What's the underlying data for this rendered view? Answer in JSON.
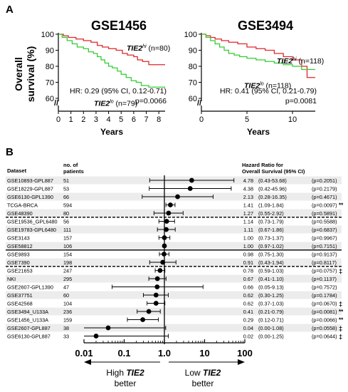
{
  "panel_a": {
    "label": "A",
    "ylabel_line1": "Overall",
    "ylabel_line2": "survival (%)",
    "axis_break": "//"
  },
  "panel_b": {
    "label": "B",
    "col_dataset": "Dataset",
    "col_n_line1": "no. of",
    "col_n_line2": "patients",
    "col_hr_line1": "Hazard Ratio for",
    "col_hr_line2": "Overall Survival (95% CI)",
    "left_arrow_label_pre": "High ",
    "left_arrow_label_em": "TIE2",
    "left_arrow_label_line2": "better",
    "right_arrow_label_pre": "Low ",
    "right_arrow_label_em": "TIE2",
    "right_arrow_label_line2": "better"
  },
  "chart_data": [
    {
      "type": "line",
      "title": "GSE1456",
      "xlabel": "Years",
      "ylabel": "Overall survival (%)",
      "xlim": [
        0,
        8.5
      ],
      "ylim": [
        55,
        100
      ],
      "x_ticks": [
        0,
        1,
        2,
        3,
        4,
        5,
        6,
        7,
        8
      ],
      "y_ticks": [
        60,
        70,
        80,
        90,
        100
      ],
      "hr_text": "HR: 0.29 (95% CI, 0.12-0.71)",
      "p_text": "p=0.0066",
      "series": [
        {
          "name_main": "TIE2",
          "name_sup": "hi",
          "name_n": " (n=80)",
          "color": "#e0262a",
          "x": [
            0,
            0.4,
            0.8,
            1.4,
            2.0,
            2.6,
            3.1,
            3.5,
            4.0,
            4.6,
            5.1,
            5.5,
            6.0,
            6.3,
            6.7,
            7.2,
            8.5
          ],
          "y": [
            100,
            99,
            98,
            97,
            96,
            95,
            93,
            92,
            91,
            90,
            88,
            87,
            86,
            84,
            83,
            81,
            81
          ]
        },
        {
          "name_main": "TIE2",
          "name_sup": "lo",
          "name_n": " (n=79)",
          "color": "#33cc33",
          "x": [
            0,
            0.3,
            0.7,
            1.1,
            1.5,
            2.0,
            2.4,
            2.8,
            3.1,
            3.4,
            3.7,
            4.0,
            4.3,
            4.7,
            5.0,
            5.4,
            5.8,
            6.2,
            6.6,
            7.2,
            8.5
          ],
          "y": [
            100,
            98,
            96,
            94,
            92,
            91,
            89,
            88,
            86,
            84,
            82,
            80,
            79,
            77,
            75,
            73,
            71,
            70,
            68,
            67,
            67
          ]
        }
      ]
    },
    {
      "type": "line",
      "title": "GSE3494",
      "xlabel": "Years",
      "ylabel": "Overall survival (%)",
      "xlim": [
        0,
        12.5
      ],
      "ylim": [
        55,
        100
      ],
      "x_ticks": [
        0,
        5,
        10
      ],
      "y_ticks": [
        60,
        70,
        80,
        90,
        100
      ],
      "hr_text": "HR: 0.41 (95% CI, 0.21-0.79)",
      "p_text": "p=0.0081",
      "series": [
        {
          "name_main": "TIE2",
          "name_sup": "hi",
          "name_n": " (n=118)",
          "color": "#e0262a",
          "x": [
            0,
            0.5,
            1.0,
            1.5,
            2.2,
            3.0,
            4.0,
            5.0,
            6.0,
            7.0,
            8.0,
            9.0,
            10.0,
            11.0,
            11.6,
            12.5
          ],
          "y": [
            100,
            99,
            98,
            97,
            96,
            95,
            94,
            92,
            91,
            90,
            88,
            86,
            84,
            80,
            73,
            73
          ]
        },
        {
          "name_main": "TIE2",
          "name_sup": "lo",
          "name_n": " (n=118)",
          "color": "#33cc33",
          "x": [
            0,
            0.5,
            1.0,
            1.5,
            2.0,
            2.5,
            3.0,
            3.6,
            4.2,
            5.0,
            6.0,
            7.0,
            8.0,
            9.0,
            10.0,
            11.0,
            12.5
          ],
          "y": [
            100,
            98,
            96,
            94,
            92,
            90,
            88,
            87,
            86,
            85,
            84,
            83,
            82,
            81,
            80,
            78,
            78
          ]
        }
      ]
    },
    {
      "type": "scatter",
      "title": "",
      "xlabel": "",
      "x_scale": "log",
      "xlim": [
        0.01,
        100
      ],
      "x_ticks": [
        "0.01",
        "0.1",
        "1.0",
        "10",
        "100"
      ],
      "reference_line": 1.0,
      "rows": [
        {
          "dataset": "GSE10893-GPL887",
          "n": "51",
          "hr": 4.78,
          "ci": [
            0.43,
            53.68
          ],
          "ci_text": "(0.43-53.68)",
          "p": "(p=0.2051)",
          "mark": "",
          "shade": true,
          "sep": ""
        },
        {
          "dataset": "GSE18229-GPL887",
          "n": "53",
          "hr": 4.38,
          "ci": [
            0.42,
            45.96
          ],
          "ci_text": "(0.42-45.96)",
          "p": "(p=0.2179)",
          "mark": "",
          "shade": false,
          "sep": ""
        },
        {
          "dataset": "GSE6130-GPL1390",
          "n": "66",
          "hr": 2.13,
          "ci": [
            0.28,
            16.35
          ],
          "ci_text": "(0.28-16.35)",
          "p": "(p=0.4671)",
          "mark": "",
          "shade": true,
          "sep": ""
        },
        {
          "dataset": "TCGA-BRCA",
          "n": "594",
          "hr": 1.41,
          "ci": [
            1.09,
            1.84
          ],
          "ci_text": "(1.09-1.84)",
          "p": "(p=0.0097)",
          "mark": "**",
          "shade": false,
          "sep": ""
        },
        {
          "dataset": "GSE48390",
          "n": "80",
          "hr": 1.27,
          "ci": [
            0.55,
            2.92
          ],
          "ci_text": "(0.55-2.92)",
          "p": "(p=0.5891)",
          "mark": "",
          "shade": true,
          "sep": "dash"
        },
        {
          "dataset": "GSE19536_GPL6480",
          "n": "56",
          "hr": 1.14,
          "ci": [
            0.73,
            1.79
          ],
          "ci_text": "(0.73-1.79)",
          "p": "(p=0.5588)",
          "mark": "",
          "shade": false,
          "sep": ""
        },
        {
          "dataset": "GSE19783-GPL6480",
          "n": "111",
          "hr": 1.11,
          "ci": [
            0.67,
            1.86
          ],
          "ci_text": "(0.67-1.86)",
          "p": "(p=0.6837)",
          "mark": "",
          "shade": true,
          "sep": ""
        },
        {
          "dataset": "GSE3143",
          "n": "157",
          "hr": 1.0,
          "ci": [
            0.73,
            1.37
          ],
          "ci_text": "(0.73-1.37)",
          "p": "(p=0.9967)",
          "mark": "",
          "shade": false,
          "sep": ""
        },
        {
          "dataset": "GSE58812",
          "n": "106",
          "hr": 1.0,
          "ci": [
            0.97,
            1.02
          ],
          "ci_text": "(0.97-1.02)",
          "p": "(p=0.7151)",
          "mark": "",
          "shade": true,
          "sep": "solid"
        },
        {
          "dataset": "GSE9893",
          "n": "154",
          "hr": 0.98,
          "ci": [
            0.75,
            1.3
          ],
          "ci_text": "(0.75-1.30)",
          "p": "(p=0.9137)",
          "mark": "",
          "shade": false,
          "sep": ""
        },
        {
          "dataset": "GSE7390",
          "n": "198",
          "hr": 0.91,
          "ci": [
            0.43,
            1.94
          ],
          "ci_text": "(0.43-1.94)",
          "p": "(p=0.8117)",
          "mark": "",
          "shade": true,
          "sep": "dash"
        },
        {
          "dataset": "GSE21653",
          "n": "247",
          "hr": 0.78,
          "ci": [
            0.59,
            1.03
          ],
          "ci_text": "(0.59-1.03)",
          "p": "(p=0.0757)",
          "mark": "‡",
          "shade": false,
          "sep": ""
        },
        {
          "dataset": "NKI",
          "n": "295",
          "hr": 0.67,
          "ci": [
            0.41,
            1.1
          ],
          "ci_text": "(0.41-1.10)",
          "p": "(p=0.1137)",
          "mark": "",
          "shade": true,
          "sep": ""
        },
        {
          "dataset": "GSE2607-GPL1390",
          "n": "47",
          "hr": 0.66,
          "ci": [
            0.05,
            9.13
          ],
          "ci_text": "(0.05-9.13)",
          "p": "(p=0.7572)",
          "mark": "",
          "shade": false,
          "sep": ""
        },
        {
          "dataset": "GSE37751",
          "n": "60",
          "hr": 0.62,
          "ci": [
            0.3,
            1.25
          ],
          "ci_text": "(0.30-1.25)",
          "p": "(p=0.1784)",
          "mark": "",
          "shade": true,
          "sep": ""
        },
        {
          "dataset": "GSE42568",
          "n": "104",
          "hr": 0.62,
          "ci": [
            0.37,
            1.03
          ],
          "ci_text": "(0.37-1.03)",
          "p": "(p=0.0670)",
          "mark": "‡",
          "shade": false,
          "sep": ""
        },
        {
          "dataset": "GSE3494_U133A",
          "n": "236",
          "hr": 0.41,
          "ci": [
            0.21,
            0.79
          ],
          "ci_text": "(0.21-0.79)",
          "p": "(p=0.0081)",
          "mark": "**",
          "shade": true,
          "sep": ""
        },
        {
          "dataset": "GSE1456_U133A",
          "n": "159",
          "hr": 0.29,
          "ci": [
            0.12,
            0.71
          ],
          "ci_text": "(0.12-0.71)",
          "p": "(p=0.0066)",
          "mark": "**",
          "shade": false,
          "sep": ""
        },
        {
          "dataset": "GSE2607-GPL887",
          "n": "38",
          "hr": 0.04,
          "ci": [
            0.0,
            1.08
          ],
          "ci_text": "(0.00-1.08)",
          "p": "(p=0.0558)",
          "mark": "‡",
          "shade": true,
          "sep": ""
        },
        {
          "dataset": "GSE6130-GPL887",
          "n": "33",
          "hr": 0.02,
          "ci": [
            0.0,
            1.25
          ],
          "ci_text": "(0.00-1.25)",
          "p": "(p=0.0644)",
          "mark": "‡",
          "shade": false,
          "sep": ""
        }
      ]
    }
  ]
}
